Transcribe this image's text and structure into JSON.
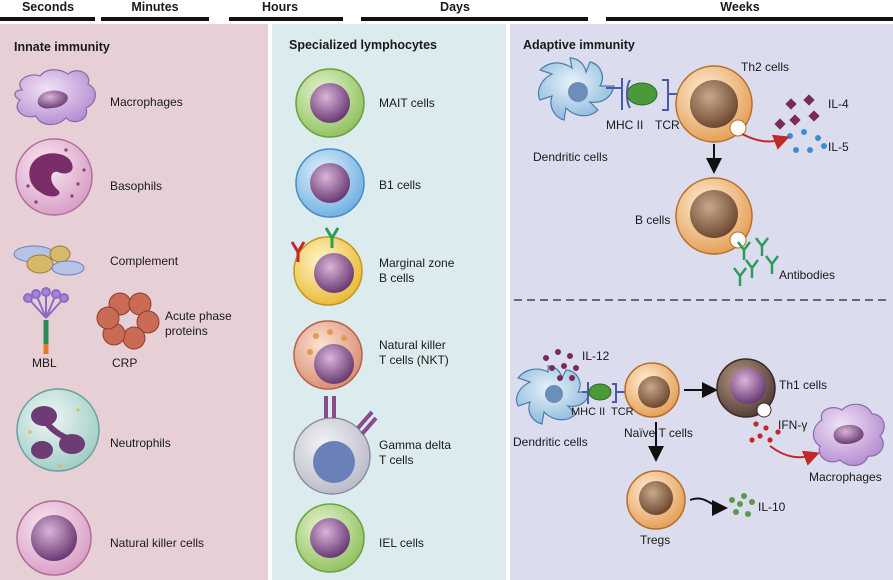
{
  "timeline": {
    "labels": [
      "Seconds",
      "Minutes",
      "Hours",
      "Days",
      "Weeks"
    ]
  },
  "innate": {
    "title": "Innate immunity",
    "items": {
      "macrophages": "Macrophages",
      "basophils": "Basophils",
      "complement": "Complement",
      "acute_phase": "Acute phase\nproteins",
      "mbl": "MBL",
      "crp": "CRP",
      "neutrophils": "Neutrophils",
      "nk_cells": "Natural killer cells"
    }
  },
  "specialized": {
    "title": "Specialized lymphocytes",
    "items": {
      "mait": "MAIT cells",
      "b1": "B1 cells",
      "marginal_zone": "Marginal zone\nB cells",
      "nkt": "Natural killer\nT cells (NKT)",
      "gamma_delta": "Gamma delta\nT cells",
      "iel": "IEL cells"
    }
  },
  "adaptive": {
    "title": "Adaptive immunity",
    "top": {
      "th2": "Th2 cells",
      "il4": "IL-4",
      "il5": "IL-5",
      "mhc2": "MHC II",
      "tcr": "TCR",
      "dendritic": "Dendritic cells",
      "b_cells": "B cells",
      "antibodies": "Antibodies"
    },
    "bottom": {
      "il12": "IL-12",
      "th1": "Th1 cells",
      "ifn": "IFN-γ",
      "mhc2": "MHC II",
      "tcr": "TCR",
      "dendritic": "Dendritic cells",
      "naive": "Naïve T cells",
      "macrophages": "Macrophages",
      "il10": "IL-10",
      "tregs": "Tregs"
    }
  }
}
